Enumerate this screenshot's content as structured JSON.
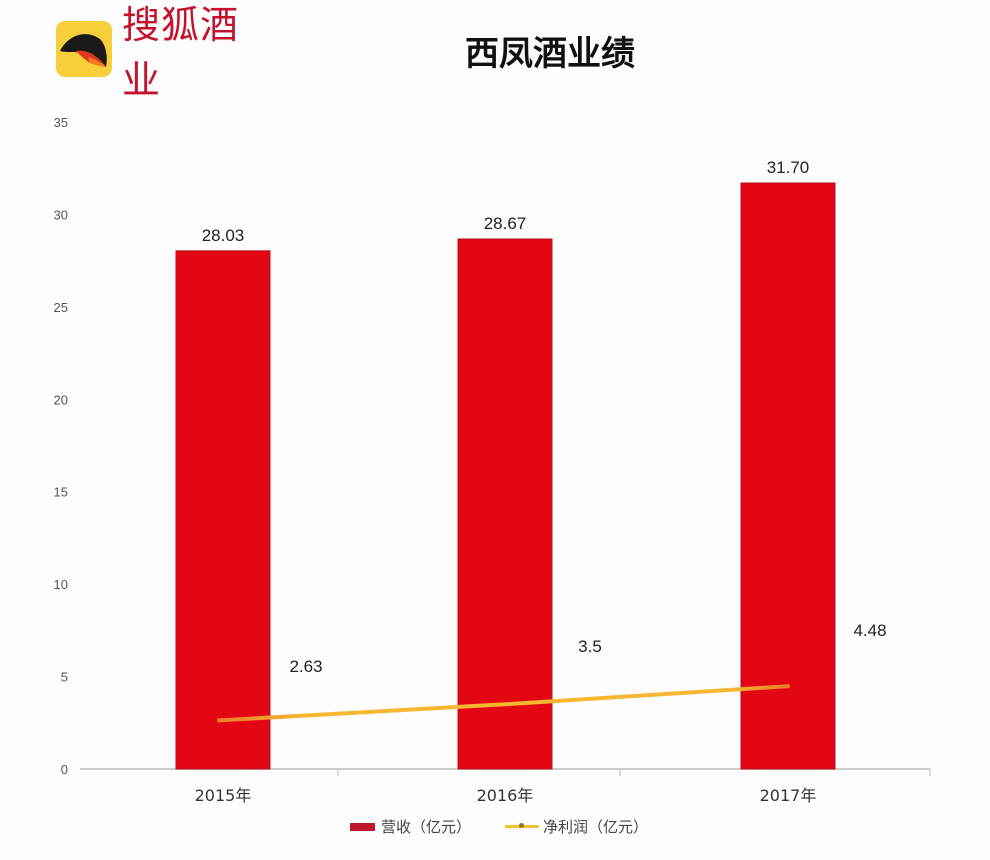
{
  "header": {
    "logo_text": "搜狐酒业",
    "title": "西凤酒业绩"
  },
  "colors": {
    "bar": "#e30613",
    "bar_edge": "#b3101e",
    "line": "#f5b731",
    "line_end": "#f07b2a",
    "logo_bg": "#f7cf3a",
    "logo_text": "#c3122d"
  },
  "legend": {
    "bar_label": "营收（亿元）",
    "line_label": "净利润（亿元）"
  },
  "chart_data": {
    "type": "bar",
    "title": "西凤酒业绩",
    "categories": [
      "2015年",
      "2016年",
      "2017年"
    ],
    "series": [
      {
        "name": "营收（亿元）",
        "type": "bar",
        "values": [
          28.03,
          28.67,
          31.7
        ],
        "labels": [
          "28.03",
          "28.67",
          "31.70"
        ]
      },
      {
        "name": "净利润（亿元）",
        "type": "line",
        "values": [
          2.63,
          3.5,
          4.48
        ],
        "labels": [
          "2.63",
          "3.5",
          "4.48"
        ]
      }
    ],
    "xlabel": "",
    "ylabel": "",
    "ylim": [
      0,
      35
    ],
    "yticks": [
      "0",
      "5",
      "10",
      "15",
      "20",
      "25",
      "30",
      "35"
    ],
    "grid": false,
    "legend_position": "bottom"
  }
}
